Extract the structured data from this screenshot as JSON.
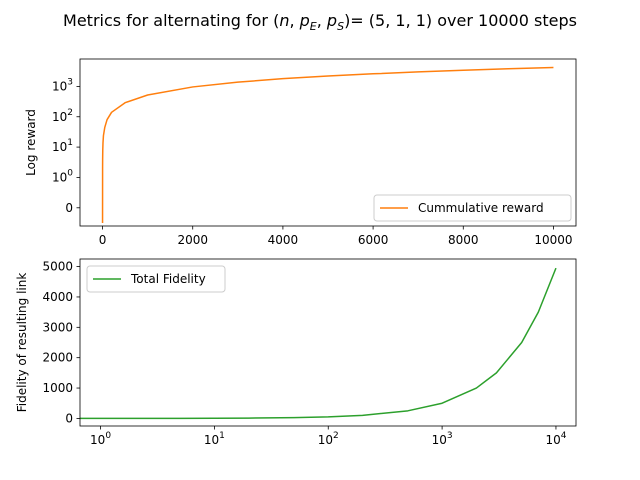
{
  "figure": {
    "title_parts": [
      "Metrics for alternating for (",
      "n",
      ", ",
      "p",
      "E",
      ", ",
      "p",
      "S",
      ")= (5, 1, 1) over 10000 steps"
    ]
  },
  "chart_data": [
    {
      "type": "line",
      "ylabel": "Log reward",
      "xlabel": "",
      "xscale": "linear",
      "yscale": "symlog",
      "xlim": [
        -500,
        10500
      ],
      "ylim": [
        -0.6,
        8000
      ],
      "x_ticks": [
        0,
        2000,
        4000,
        6000,
        8000,
        10000
      ],
      "x_tick_labels": [
        "0",
        "2000",
        "4000",
        "6000",
        "8000",
        "10000"
      ],
      "y_ticks": [
        0,
        1,
        10,
        100,
        1000
      ],
      "y_tick_labels": [
        [
          "0",
          ""
        ],
        [
          "10",
          "0"
        ],
        [
          "10",
          "1"
        ],
        [
          "10",
          "2"
        ],
        [
          "10",
          "3"
        ]
      ],
      "legend": {
        "position": "lower right",
        "entries": [
          "Cummulative reward"
        ]
      },
      "series": [
        {
          "name": "Cummulative reward",
          "color": "#ff7f0e",
          "x": [
            0,
            1,
            2,
            5,
            10,
            20,
            50,
            100,
            200,
            500,
            1000,
            2000,
            3000,
            4000,
            5000,
            6000,
            7000,
            8000,
            9000,
            10000
          ],
          "y": [
            -0.5,
            2,
            4,
            8,
            14,
            24,
            45,
            80,
            140,
            290,
            520,
            960,
            1380,
            1800,
            2200,
            2600,
            3000,
            3400,
            3800,
            4200
          ]
        }
      ]
    },
    {
      "type": "line",
      "ylabel": "Fidelity of resulting link",
      "xlabel": "",
      "xscale": "log",
      "yscale": "linear",
      "xlim": [
        0.66,
        15000
      ],
      "ylim": [
        -250,
        5250
      ],
      "x_ticks": [
        1,
        10,
        100,
        1000,
        10000
      ],
      "x_tick_labels": [
        [
          "10",
          "0"
        ],
        [
          "10",
          "1"
        ],
        [
          "10",
          "2"
        ],
        [
          "10",
          "3"
        ],
        [
          "10",
          "4"
        ]
      ],
      "y_ticks": [
        0,
        1000,
        2000,
        3000,
        4000,
        5000
      ],
      "y_tick_labels": [
        "0",
        "1000",
        "2000",
        "3000",
        "4000",
        "5000"
      ],
      "legend": {
        "position": "upper left",
        "entries": [
          "Total Fidelity"
        ]
      },
      "series": [
        {
          "name": "Total Fidelity",
          "color": "#2ca02c",
          "x": [
            0.66,
            1,
            2,
            5,
            10,
            20,
            50,
            100,
            200,
            500,
            1000,
            2000,
            3000,
            5000,
            7000,
            10000
          ],
          "y": [
            0,
            0.5,
            1,
            2.5,
            5,
            10,
            25,
            50,
            100,
            250,
            500,
            1000,
            1500,
            2500,
            3500,
            4950
          ]
        }
      ]
    }
  ]
}
